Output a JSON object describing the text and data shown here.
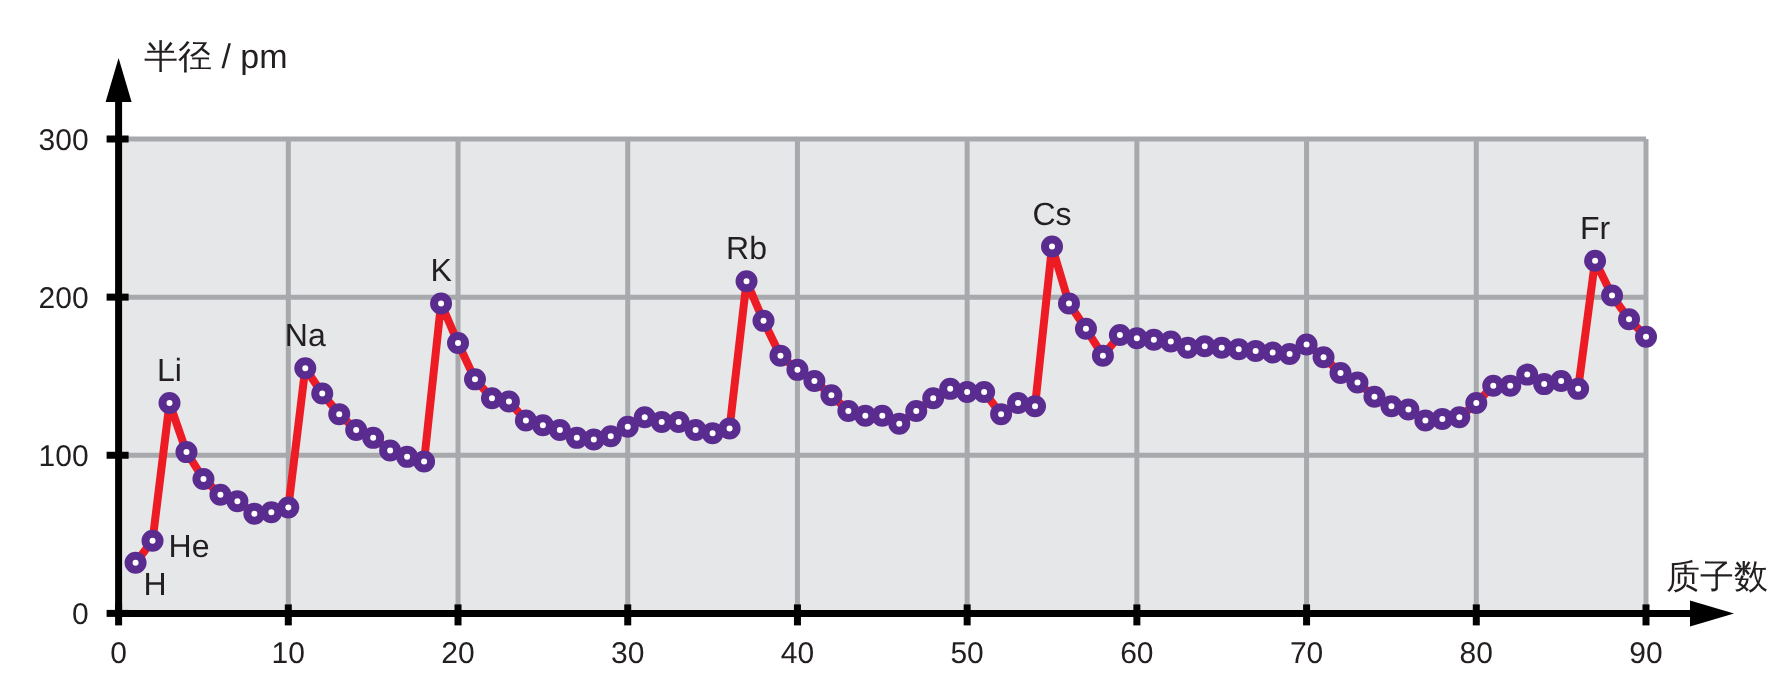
{
  "chart_data": {
    "type": "line",
    "xlabel": "质子数",
    "ylabel": "半径 / pm",
    "x": [
      1,
      2,
      3,
      4,
      5,
      6,
      7,
      8,
      9,
      10,
      11,
      12,
      13,
      14,
      15,
      16,
      17,
      18,
      19,
      20,
      21,
      22,
      23,
      24,
      25,
      26,
      27,
      28,
      29,
      30,
      31,
      32,
      33,
      34,
      35,
      36,
      37,
      38,
      39,
      40,
      41,
      42,
      43,
      44,
      45,
      46,
      47,
      48,
      49,
      50,
      51,
      52,
      53,
      54,
      55,
      56,
      57,
      58,
      59,
      60,
      61,
      62,
      63,
      64,
      65,
      66,
      67,
      68,
      69,
      70,
      71,
      72,
      73,
      74,
      75,
      76,
      77,
      78,
      79,
      80,
      81,
      82,
      83,
      84,
      85,
      86,
      87,
      88,
      89,
      90
    ],
    "series": [
      {
        "color": "#ed1c24",
        "values": [
          32,
          46,
          133,
          102,
          85,
          75,
          71,
          63,
          64,
          67,
          155,
          139,
          126,
          116,
          111,
          103,
          99,
          96,
          196,
          171,
          148,
          136,
          134,
          122,
          119,
          116,
          111,
          110,
          112,
          118,
          124,
          121,
          121,
          116,
          114,
          117,
          210,
          185,
          163,
          154,
          147,
          138,
          128,
          125,
          125,
          120,
          128,
          136,
          142,
          140,
          140,
          126,
          133,
          131,
          232,
          196,
          180,
          163,
          176,
          174,
          173,
          172,
          168,
          169,
          168,
          167,
          166,
          165,
          164,
          170,
          162,
          152,
          146,
          137,
          131,
          129,
          122,
          123,
          124,
          133,
          144,
          144,
          151,
          145,
          147,
          142,
          223,
          201,
          186,
          175
        ]
      }
    ],
    "xlim": [
      0,
      90
    ],
    "ylim": [
      0,
      300
    ],
    "xticks": [
      0,
      10,
      20,
      30,
      40,
      50,
      60,
      70,
      80,
      90
    ],
    "yticks": [
      0,
      100,
      200,
      300
    ],
    "grid": true,
    "marker": "circle",
    "annotations": [
      {
        "text": "H",
        "x": 1,
        "y": 32
      },
      {
        "text": "He",
        "x": 2,
        "y": 46
      },
      {
        "text": "Li",
        "x": 3,
        "y": 133
      },
      {
        "text": "Na",
        "x": 11,
        "y": 155
      },
      {
        "text": "K",
        "x": 19,
        "y": 196
      },
      {
        "text": "Rb",
        "x": 37,
        "y": 210
      },
      {
        "text": "Cs",
        "x": 55,
        "y": 232
      },
      {
        "text": "Fr",
        "x": 87,
        "y": 223
      }
    ]
  }
}
